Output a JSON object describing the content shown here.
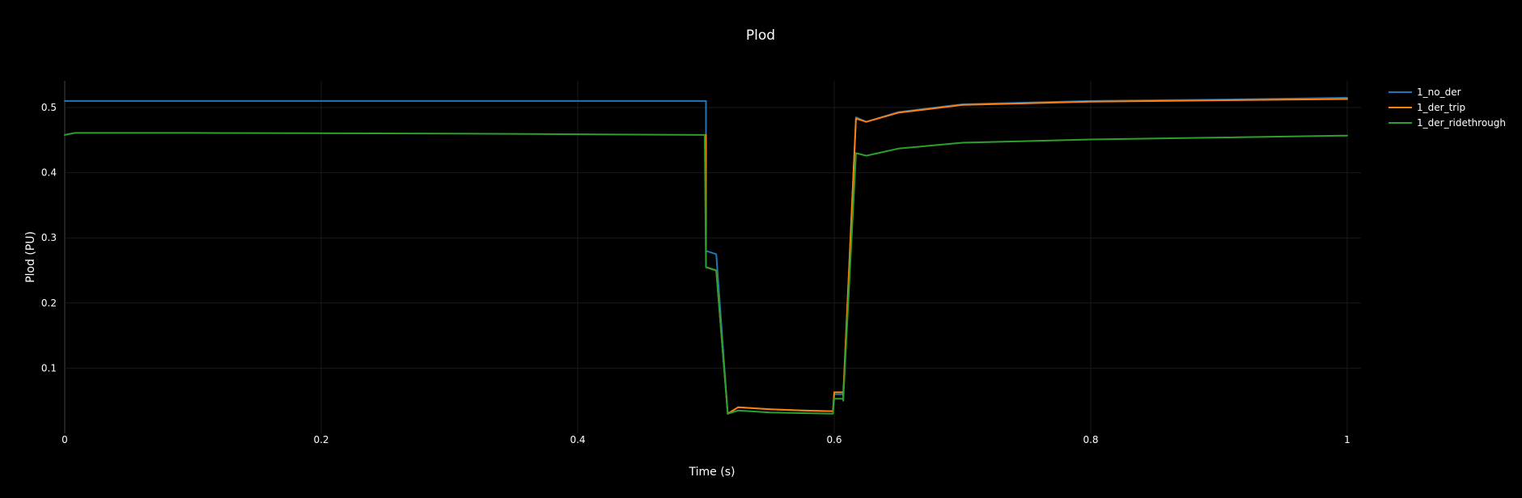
{
  "chart_data": {
    "type": "line",
    "title": "Plod",
    "xlabel": "Time (s)",
    "ylabel": "Plod (PU)",
    "xlim": [
      0,
      1.0
    ],
    "ylim": [
      0.0,
      0.5
    ],
    "x_ticks": [
      0,
      0.2,
      0.4,
      0.6,
      0.8,
      1
    ],
    "x_tick_labels": [
      "0",
      "0.2",
      "0.4",
      "0.6",
      "0.8",
      "1"
    ],
    "y_ticks": [
      0.1,
      0.2,
      0.3,
      0.4,
      0.5
    ],
    "y_tick_labels": [
      "0.1",
      "0.2",
      "0.3",
      "0.4",
      "0.5"
    ],
    "grid": true,
    "legend_position": "top-right",
    "series": [
      {
        "name": "1_no_der",
        "color": "#1f77b4",
        "x": [
          0,
          0.499,
          0.5,
          0.5,
          0.508,
          0.517,
          0.525,
          0.55,
          0.575,
          0.599,
          0.6,
          0.607,
          0.607,
          0.617,
          0.625,
          0.65,
          0.7,
          0.8,
          0.9,
          1.0
        ],
        "y": [
          0.51,
          0.51,
          0.51,
          0.28,
          0.275,
          0.03,
          0.04,
          0.037,
          0.035,
          0.034,
          0.06,
          0.06,
          0.055,
          0.485,
          0.478,
          0.493,
          0.505,
          0.51,
          0.512,
          0.515
        ]
      },
      {
        "name": "1_der_trip",
        "color": "#ff7f0e",
        "x": [
          0.5,
          0.5,
          0.508,
          0.517,
          0.525,
          0.55,
          0.575,
          0.599,
          0.6,
          0.607,
          0.607,
          0.617,
          0.625,
          0.65,
          0.7,
          0.8,
          0.9,
          1.0
        ],
        "y": [
          0.458,
          0.255,
          0.25,
          0.03,
          0.04,
          0.037,
          0.035,
          0.034,
          0.063,
          0.063,
          0.058,
          0.483,
          0.478,
          0.492,
          0.504,
          0.509,
          0.511,
          0.513
        ]
      },
      {
        "name": "1_der_ridethrough",
        "color": "#2ca02c",
        "x": [
          0,
          0.008,
          0.1,
          0.3,
          0.499,
          0.5,
          0.508,
          0.517,
          0.525,
          0.55,
          0.575,
          0.599,
          0.6,
          0.607,
          0.607,
          0.617,
          0.625,
          0.65,
          0.7,
          0.8,
          0.9,
          1.0
        ],
        "y": [
          0.458,
          0.461,
          0.461,
          0.46,
          0.458,
          0.255,
          0.25,
          0.03,
          0.035,
          0.032,
          0.031,
          0.03,
          0.053,
          0.053,
          0.05,
          0.43,
          0.426,
          0.437,
          0.446,
          0.451,
          0.454,
          0.457
        ]
      }
    ]
  }
}
